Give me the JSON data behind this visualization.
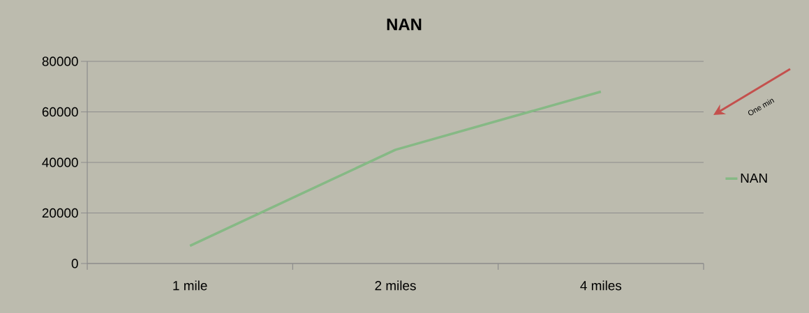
{
  "chart_data": {
    "type": "line",
    "title": "NAN",
    "categories": [
      "1 mile",
      "2 miles",
      "4 miles"
    ],
    "series": [
      {
        "name": "NAN",
        "color": "#86b985",
        "values": [
          7000,
          45000,
          68000
        ]
      }
    ],
    "ylim": [
      0,
      80000
    ],
    "yticks": [
      0,
      20000,
      40000,
      60000,
      80000
    ],
    "grid": "y",
    "legend": "right",
    "marker": "none",
    "line_style": "solid",
    "annotations": [
      "One min"
    ]
  }
}
